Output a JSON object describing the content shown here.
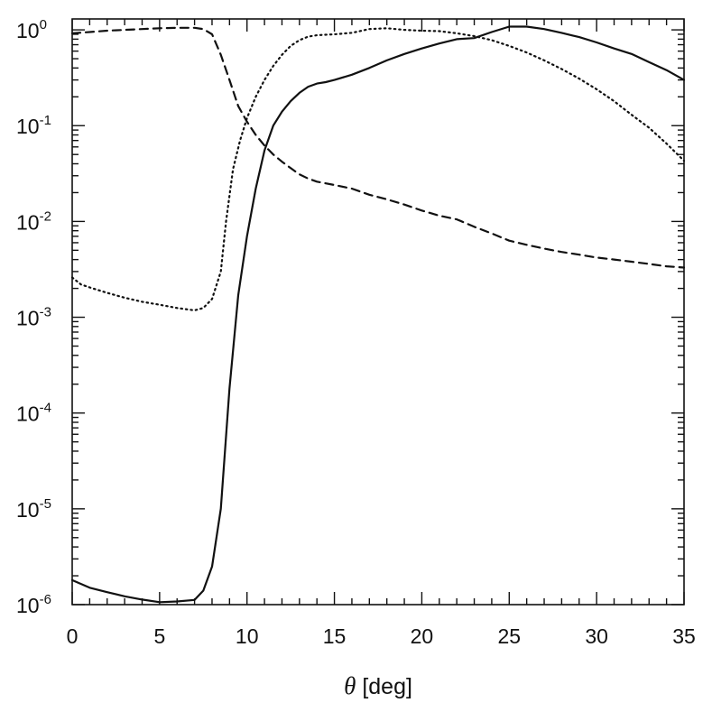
{
  "chart_data": {
    "type": "line",
    "title": "",
    "xlabel": "[deg]",
    "xlabel_symbol": "θ",
    "ylabel": "",
    "xlim": [
      0,
      35
    ],
    "ylim": [
      1e-06,
      1.3
    ],
    "yscale": "log",
    "grid": false,
    "legend": "none",
    "x_ticks": [
      "0",
      "5",
      "10",
      "15",
      "20",
      "25",
      "30",
      "35"
    ],
    "x_tick_values": [
      0,
      5,
      10,
      15,
      20,
      25,
      30,
      35
    ],
    "y_ticks": [
      {
        "base": "10",
        "exp": "0",
        "value": 1
      },
      {
        "base": "10",
        "exp": "-1",
        "value": 0.1
      },
      {
        "base": "10",
        "exp": "-2",
        "value": 0.01
      },
      {
        "base": "10",
        "exp": "-3",
        "value": 0.001
      },
      {
        "base": "10",
        "exp": "-4",
        "value": 0.0001
      },
      {
        "base": "10",
        "exp": "-5",
        "value": 1e-05
      },
      {
        "base": "10",
        "exp": "-6",
        "value": 1e-06
      }
    ],
    "series": [
      {
        "style": "solid",
        "color": "#111111",
        "points": [
          [
            0,
            1.8e-06
          ],
          [
            1,
            1.5e-06
          ],
          [
            2,
            1.35e-06
          ],
          [
            3,
            1.22e-06
          ],
          [
            4,
            1.13e-06
          ],
          [
            5,
            1.06e-06
          ],
          [
            6,
            1.08e-06
          ],
          [
            7,
            1.12e-06
          ],
          [
            7.5,
            1.4e-06
          ],
          [
            8,
            2.5e-06
          ],
          [
            8.5,
            1e-05
          ],
          [
            9,
            0.00018
          ],
          [
            9.5,
            0.0017
          ],
          [
            10,
            0.007
          ],
          [
            10.5,
            0.022
          ],
          [
            11,
            0.055
          ],
          [
            11.5,
            0.1
          ],
          [
            12,
            0.14
          ],
          [
            12.5,
            0.18
          ],
          [
            13,
            0.22
          ],
          [
            13.5,
            0.255
          ],
          [
            14,
            0.275
          ],
          [
            14.5,
            0.285
          ],
          [
            15,
            0.3
          ],
          [
            16,
            0.34
          ],
          [
            17,
            0.4
          ],
          [
            18,
            0.48
          ],
          [
            19,
            0.56
          ],
          [
            20,
            0.64
          ],
          [
            21,
            0.72
          ],
          [
            22,
            0.8
          ],
          [
            23,
            0.82
          ],
          [
            24,
            0.95
          ],
          [
            25,
            1.08
          ],
          [
            26,
            1.08
          ],
          [
            27,
            1.02
          ],
          [
            28,
            0.93
          ],
          [
            29,
            0.84
          ],
          [
            30,
            0.74
          ],
          [
            31,
            0.64
          ],
          [
            32,
            0.56
          ],
          [
            33,
            0.46
          ],
          [
            34,
            0.38
          ],
          [
            35,
            0.3
          ]
        ]
      },
      {
        "style": "dotted",
        "color": "#111111",
        "points": [
          [
            0,
            0.0026
          ],
          [
            0.5,
            0.0022
          ],
          [
            1,
            0.00205
          ],
          [
            2,
            0.0018
          ],
          [
            3,
            0.0016
          ],
          [
            4,
            0.00145
          ],
          [
            5,
            0.00135
          ],
          [
            6,
            0.00125
          ],
          [
            7,
            0.00118
          ],
          [
            7.5,
            0.00125
          ],
          [
            8,
            0.00155
          ],
          [
            8.5,
            0.003
          ],
          [
            8.8,
            0.01
          ],
          [
            9.2,
            0.035
          ],
          [
            9.6,
            0.07
          ],
          [
            10,
            0.12
          ],
          [
            10.5,
            0.2
          ],
          [
            11,
            0.3
          ],
          [
            11.5,
            0.42
          ],
          [
            12,
            0.55
          ],
          [
            12.5,
            0.68
          ],
          [
            13,
            0.78
          ],
          [
            13.5,
            0.85
          ],
          [
            14,
            0.88
          ],
          [
            15,
            0.9
          ],
          [
            16,
            0.93
          ],
          [
            17,
            1.02
          ],
          [
            18,
            1.04
          ],
          [
            19,
            1.0
          ],
          [
            20,
            0.98
          ],
          [
            21,
            0.97
          ],
          [
            22,
            0.92
          ],
          [
            23,
            0.86
          ],
          [
            24,
            0.78
          ],
          [
            25,
            0.68
          ],
          [
            26,
            0.58
          ],
          [
            27,
            0.48
          ],
          [
            28,
            0.39
          ],
          [
            29,
            0.31
          ],
          [
            30,
            0.24
          ],
          [
            31,
            0.18
          ],
          [
            32,
            0.13
          ],
          [
            33,
            0.095
          ],
          [
            34,
            0.065
          ],
          [
            35,
            0.043
          ]
        ]
      },
      {
        "style": "dashed",
        "color": "#111111",
        "points": [
          [
            0,
            0.92
          ],
          [
            1,
            0.95
          ],
          [
            2,
            0.98
          ],
          [
            3,
            1.0
          ],
          [
            4,
            1.02
          ],
          [
            5,
            1.04
          ],
          [
            6,
            1.05
          ],
          [
            7,
            1.05
          ],
          [
            7.5,
            1.02
          ],
          [
            8,
            0.9
          ],
          [
            8.5,
            0.55
          ],
          [
            9,
            0.3
          ],
          [
            9.5,
            0.16
          ],
          [
            10,
            0.11
          ],
          [
            10.5,
            0.08
          ],
          [
            11,
            0.062
          ],
          [
            11.5,
            0.05
          ],
          [
            12,
            0.042
          ],
          [
            12.5,
            0.036
          ],
          [
            13,
            0.031
          ],
          [
            13.5,
            0.028
          ],
          [
            14,
            0.026
          ],
          [
            15,
            0.024
          ],
          [
            16,
            0.022
          ],
          [
            17,
            0.019
          ],
          [
            18,
            0.017
          ],
          [
            19,
            0.015
          ],
          [
            20,
            0.013
          ],
          [
            21,
            0.0115
          ],
          [
            22,
            0.0105
          ],
          [
            23,
            0.0088
          ],
          [
            24,
            0.0075
          ],
          [
            25,
            0.0063
          ],
          [
            26,
            0.0057
          ],
          [
            27,
            0.0052
          ],
          [
            28,
            0.0048
          ],
          [
            29,
            0.0045
          ],
          [
            30,
            0.0042
          ],
          [
            31,
            0.004
          ],
          [
            32,
            0.0038
          ],
          [
            33,
            0.0036
          ],
          [
            34,
            0.0034
          ],
          [
            35,
            0.0033
          ]
        ]
      }
    ]
  }
}
